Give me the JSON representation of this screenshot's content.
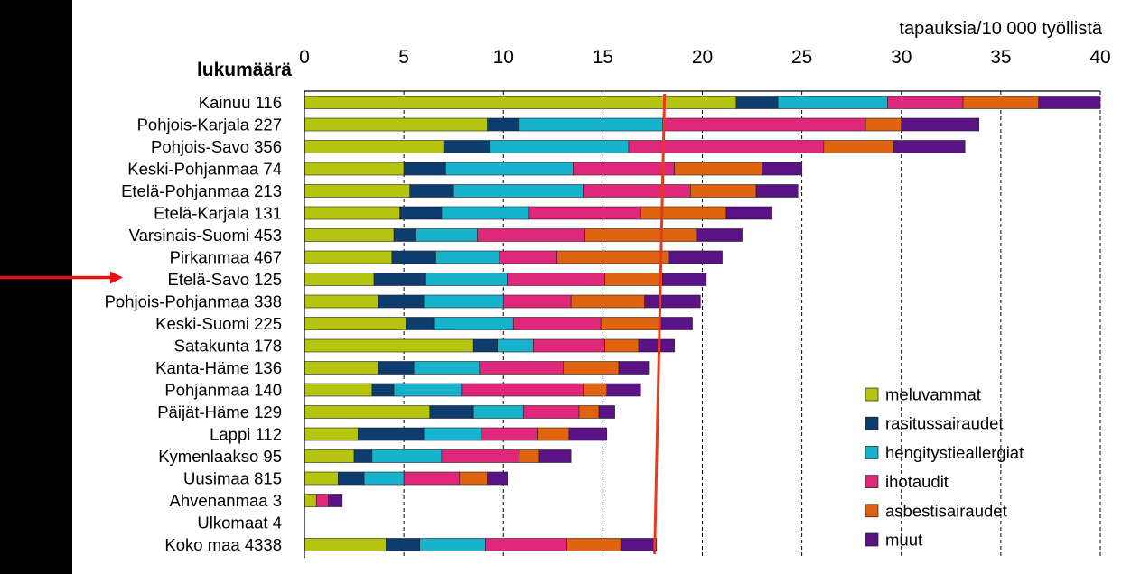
{
  "chart_data": {
    "type": "bar",
    "stacked": true,
    "orientation": "horizontal",
    "title": "",
    "xlabel": "tapauksia/10 000 työllistä",
    "ylabel": "lukumäärä",
    "xlim": [
      0,
      40
    ],
    "xticks": [
      0,
      5,
      10,
      15,
      20,
      25,
      30,
      35,
      40
    ],
    "gridlines": "dashed vertical",
    "legend_position": "bottom-right",
    "categories": [
      "Kainuu 116",
      "Pohjois-Karjala 227",
      "Pohjois-Savo 356",
      "Keski-Pohjanmaa 74",
      "Etelä-Pohjanmaa 213",
      "Etelä-Karjala 131",
      "Varsinais-Suomi 453",
      "Pirkanmaa 467",
      "Etelä-Savo 125",
      "Pohjois-Pohjanmaa 338",
      "Keski-Suomi 225",
      "Satakunta 178",
      "Kanta-Häme 136",
      "Pohjanmaa 140",
      "Päijät-Häme 129",
      "Lappi 112",
      "Kymenlaakso 95",
      "Uusimaa 815",
      "Ahvenanmaa 3",
      "Ulkomaat 4",
      "Koko maa 4338"
    ],
    "series": [
      {
        "name": "meluvammat",
        "color": "#b5c40f",
        "values": [
          21.7,
          9.2,
          7.0,
          5.0,
          5.3,
          4.8,
          4.5,
          4.4,
          3.5,
          3.7,
          5.1,
          8.5,
          3.7,
          3.4,
          6.3,
          2.7,
          2.5,
          1.7,
          0.6,
          0,
          4.1
        ]
      },
      {
        "name": "rasitussairaudet",
        "color": "#0c3d6e",
        "values": [
          2.1,
          1.6,
          2.3,
          2.1,
          2.2,
          2.1,
          1.1,
          2.2,
          2.6,
          2.3,
          1.4,
          1.2,
          1.8,
          1.1,
          2.2,
          3.3,
          0.9,
          1.3,
          0,
          0,
          1.7
        ]
      },
      {
        "name": "hengitystieallergiat",
        "color": "#17b2cc",
        "values": [
          5.5,
          7.2,
          7.0,
          6.4,
          6.5,
          4.4,
          3.1,
          3.2,
          4.1,
          4.0,
          4.0,
          1.8,
          3.3,
          3.4,
          2.5,
          2.9,
          3.5,
          2.0,
          0,
          0,
          3.3
        ]
      },
      {
        "name": "ihotaudit",
        "color": "#e0287a",
        "values": [
          3.8,
          10.2,
          9.8,
          5.1,
          5.4,
          5.6,
          5.4,
          2.9,
          4.9,
          3.4,
          4.4,
          3.6,
          4.2,
          6.1,
          2.8,
          2.8,
          3.9,
          2.8,
          0.6,
          0,
          4.1
        ]
      },
      {
        "name": "asbestisairaudet",
        "color": "#e0630f",
        "values": [
          3.8,
          1.8,
          3.5,
          4.4,
          3.3,
          4.3,
          5.6,
          5.6,
          2.9,
          3.7,
          3.0,
          1.7,
          2.8,
          1.2,
          1.0,
          1.6,
          1.0,
          1.4,
          0,
          0,
          2.7
        ]
      },
      {
        "name": "muut",
        "color": "#5a1384",
        "values": [
          3.1,
          3.9,
          3.6,
          2.0,
          2.1,
          2.3,
          2.3,
          2.7,
          2.2,
          2.8,
          1.6,
          1.8,
          1.5,
          1.7,
          0.8,
          1.9,
          1.6,
          1.0,
          0.7,
          0,
          1.8
        ]
      }
    ],
    "reference_line": {
      "value_top": 18.1,
      "value_bottom": 17.6,
      "color": "#e8391f"
    }
  },
  "annotation": {
    "arrow_target": "Etelä-Savo 125",
    "arrow_color": "#e81010"
  }
}
